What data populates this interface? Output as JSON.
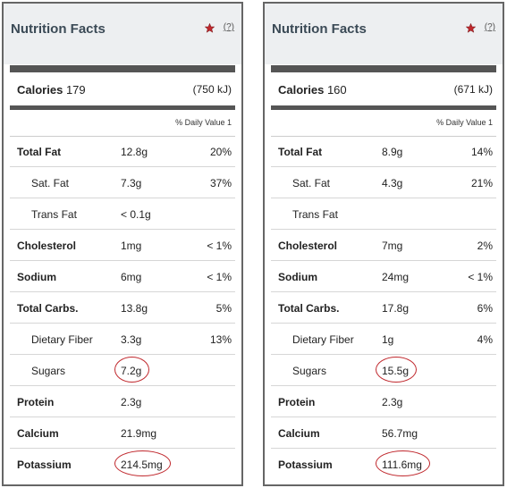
{
  "panels": [
    {
      "title": "Nutrition Facts",
      "help": "(?)",
      "calories_label": "Calories",
      "calories_value": "179",
      "calories_kj": "(750 kJ)",
      "daily_value_header": "% Daily Value 1",
      "rows": [
        {
          "label": "Total Fat",
          "amount": "12.8g",
          "pct": "20%",
          "bold": true,
          "indent": false,
          "circled": false
        },
        {
          "label": "Sat. Fat",
          "amount": "7.3g",
          "pct": "37%",
          "bold": false,
          "indent": true,
          "circled": false
        },
        {
          "label": "Trans Fat",
          "amount": "< 0.1g",
          "pct": "",
          "bold": false,
          "indent": true,
          "circled": false
        },
        {
          "label": "Cholesterol",
          "amount": "1mg",
          "pct": "< 1%",
          "bold": true,
          "indent": false,
          "circled": false
        },
        {
          "label": "Sodium",
          "amount": "6mg",
          "pct": "< 1%",
          "bold": true,
          "indent": false,
          "circled": false
        },
        {
          "label": "Total Carbs.",
          "amount": "13.8g",
          "pct": "5%",
          "bold": true,
          "indent": false,
          "circled": false
        },
        {
          "label": "Dietary Fiber",
          "amount": "3.3g",
          "pct": "13%",
          "bold": false,
          "indent": true,
          "circled": false
        },
        {
          "label": "Sugars",
          "amount": "7.2g",
          "pct": "",
          "bold": false,
          "indent": true,
          "circled": true
        },
        {
          "label": "Protein",
          "amount": "2.3g",
          "pct": "",
          "bold": true,
          "indent": false,
          "circled": false
        },
        {
          "label": "Calcium",
          "amount": "21.9mg",
          "pct": "",
          "bold": true,
          "indent": false,
          "circled": false
        },
        {
          "label": "Potassium",
          "amount": "214.5mg",
          "pct": "",
          "bold": true,
          "indent": false,
          "circled": true
        }
      ]
    },
    {
      "title": "Nutrition Facts",
      "help": "(?)",
      "calories_label": "Calories",
      "calories_value": "160",
      "calories_kj": "(671 kJ)",
      "daily_value_header": "% Daily Value 1",
      "rows": [
        {
          "label": "Total Fat",
          "amount": "8.9g",
          "pct": "14%",
          "bold": true,
          "indent": false,
          "circled": false
        },
        {
          "label": "Sat. Fat",
          "amount": "4.3g",
          "pct": "21%",
          "bold": false,
          "indent": true,
          "circled": false
        },
        {
          "label": "Trans Fat",
          "amount": "",
          "pct": "",
          "bold": false,
          "indent": true,
          "circled": false
        },
        {
          "label": "Cholesterol",
          "amount": "7mg",
          "pct": "2%",
          "bold": true,
          "indent": false,
          "circled": false
        },
        {
          "label": "Sodium",
          "amount": "24mg",
          "pct": "< 1%",
          "bold": true,
          "indent": false,
          "circled": false
        },
        {
          "label": "Total Carbs.",
          "amount": "17.8g",
          "pct": "6%",
          "bold": true,
          "indent": false,
          "circled": false
        },
        {
          "label": "Dietary Fiber",
          "amount": "1g",
          "pct": "4%",
          "bold": false,
          "indent": true,
          "circled": false
        },
        {
          "label": "Sugars",
          "amount": "15.5g",
          "pct": "",
          "bold": false,
          "indent": true,
          "circled": true
        },
        {
          "label": "Protein",
          "amount": "2.3g",
          "pct": "",
          "bold": true,
          "indent": false,
          "circled": false
        },
        {
          "label": "Calcium",
          "amount": "56.7mg",
          "pct": "",
          "bold": true,
          "indent": false,
          "circled": false
        },
        {
          "label": "Potassium",
          "amount": "111.6mg",
          "pct": "",
          "bold": true,
          "indent": false,
          "circled": true
        }
      ]
    }
  ],
  "colors": {
    "highlight_circle": "#c0282d",
    "star": "#c0282d",
    "header_bg": "#edeff1",
    "rule": "#555555"
  },
  "icons": {
    "star": "star-icon"
  }
}
